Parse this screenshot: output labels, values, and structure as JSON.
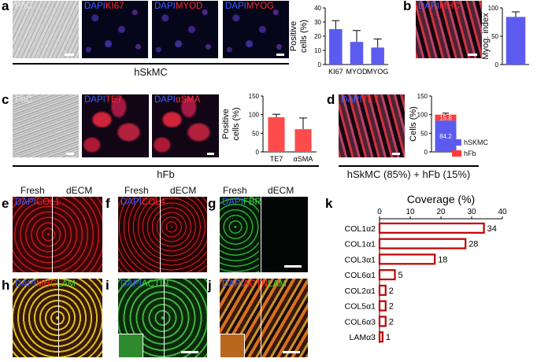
{
  "panels": {
    "a": "a",
    "b": "b",
    "c": "c",
    "d": "d",
    "e": "e",
    "f": "f",
    "g": "g",
    "h": "h",
    "i": "i",
    "j": "j",
    "k": "k"
  },
  "a": {
    "img1": {
      "label": "PhC"
    },
    "img2": {
      "dapi": "DAPI",
      "marker": "KI67"
    },
    "img3": {
      "dapi": "DAPI",
      "marker": "MYOD"
    },
    "img4": {
      "dapi": "DAPI",
      "marker": "MYOG"
    },
    "caption": "hSkMC"
  },
  "b": {
    "img": {
      "dapi": "DAPI",
      "marker": "MHC"
    }
  },
  "c": {
    "img1": {
      "label": "PhC"
    },
    "img2": {
      "dapi": "DAPI",
      "marker": "TE7"
    },
    "img3": {
      "dapi": "DAPI",
      "marker": "αSMA"
    },
    "caption": "hFb"
  },
  "d": {
    "img": {
      "dapi": "DAPI",
      "marker": "TE7"
    },
    "caption": "hSkMC (85%) + hFb (15%)"
  },
  "tissue": {
    "fresh": "Fresh",
    "decm": "dECM",
    "e": {
      "dapi": "DAPI",
      "marker": "COL1"
    },
    "f": {
      "dapi": "DAPI",
      "marker": "COL4"
    },
    "g": {
      "dapi": "DAPI",
      "marker": "FBR"
    },
    "h": {
      "dapi": "DAPI",
      "marker": "MHC",
      "marker2": "LAM"
    },
    "i": {
      "dapi": "DAPI",
      "marker": "ACTIN"
    },
    "j": {
      "dapi": "DAPI",
      "marker": "ACTN",
      "marker2": "LAM"
    }
  },
  "chart_data": [
    {
      "type": "bar",
      "id": "a",
      "ylabel": "Positive cells (%)",
      "categories": [
        "KI67",
        "MYOD",
        "MYOG"
      ],
      "values": [
        25,
        16,
        12
      ],
      "errors": [
        6,
        8,
        6
      ],
      "ylim": [
        0,
        40
      ],
      "yticks": [
        0,
        10,
        20,
        30,
        40
      ],
      "color": "#5b5bf0"
    },
    {
      "type": "bar",
      "id": "b",
      "ylabel": "Myog. index",
      "categories": [
        ""
      ],
      "values": [
        84
      ],
      "errors": [
        9
      ],
      "ylim": [
        0,
        100
      ],
      "yticks": [
        0,
        50,
        100
      ],
      "color": "#5b5bf0"
    },
    {
      "type": "bar",
      "id": "c",
      "ylabel": "Positive cells (%)",
      "categories": [
        "TE7",
        "αSMA"
      ],
      "values": [
        93,
        61
      ],
      "errors": [
        8,
        30
      ],
      "ylim": [
        0,
        150
      ],
      "yticks": [
        0,
        50,
        100,
        150
      ],
      "color": "#ff4b4b"
    },
    {
      "type": "bar",
      "id": "d",
      "ylabel": "Cells (%)",
      "categories": [
        ""
      ],
      "series": [
        {
          "name": "hSKMC",
          "values": [
            84.2
          ],
          "color": "#5b5bf0"
        },
        {
          "name": "hFb",
          "values": [
            15.8
          ],
          "color": "#ff3b3b"
        }
      ],
      "stack_labels": [
        "84.2",
        "15.8"
      ],
      "ylim": [
        0,
        150
      ],
      "yticks": [
        0,
        50,
        100,
        150
      ]
    },
    {
      "type": "bar",
      "id": "k",
      "title": "Coverage (%)",
      "orientation": "horizontal",
      "categories": [
        "COL1α2",
        "COL1α1",
        "COL3α1",
        "COL6α1",
        "COL2α1",
        "COL5α1",
        "COL6α3",
        "LAMα3"
      ],
      "values": [
        34,
        28,
        18,
        5,
        2,
        2,
        2,
        1
      ],
      "xlim": [
        0,
        40
      ],
      "xticks": [
        0,
        10,
        20,
        30,
        40
      ],
      "color": "#c00000"
    }
  ]
}
